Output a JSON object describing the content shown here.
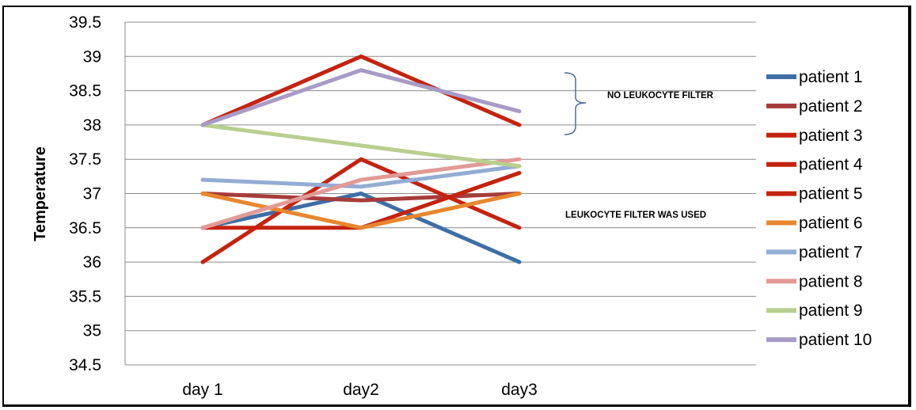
{
  "chart_data": {
    "type": "line",
    "title": "",
    "xlabel": "",
    "ylabel": "Temperature",
    "categories": [
      "day 1",
      "day2",
      "day3"
    ],
    "ylim": [
      34.5,
      39.5
    ],
    "yticks": [
      "34.5",
      "35",
      "35.5",
      "36",
      "36.5",
      "37",
      "37.5",
      "38",
      "38.5",
      "39",
      "39.5"
    ],
    "grid": "horizontal",
    "legend_position": "right",
    "series": [
      {
        "name": "patient 1",
        "color": "#3e6ea6",
        "values": [
          36.5,
          37.0,
          36.0
        ]
      },
      {
        "name": "patient 2",
        "color": "#a63c3a",
        "values": [
          37.0,
          36.9,
          37.0
        ]
      },
      {
        "name": "patient 3",
        "color": "#c4230f",
        "values": [
          36.5,
          36.5,
          37.3
        ]
      },
      {
        "name": "patient 4",
        "color": "#c4230f",
        "values": [
          36.0,
          37.5,
          36.5
        ]
      },
      {
        "name": "patient 5",
        "color": "#c4230f",
        "values": [
          38.0,
          39.0,
          38.0
        ]
      },
      {
        "name": "patient 6",
        "color": "#e8862e",
        "values": [
          37.0,
          36.5,
          37.0
        ]
      },
      {
        "name": "patient 7",
        "color": "#93acd3",
        "values": [
          37.2,
          37.1,
          37.4
        ]
      },
      {
        "name": "patient 8",
        "color": "#e29a97",
        "values": [
          36.5,
          37.2,
          37.5
        ]
      },
      {
        "name": "patient 9",
        "color": "#b8cf8e",
        "values": [
          38.0,
          37.7,
          37.4
        ]
      },
      {
        "name": "patient 10",
        "color": "#a89bc6",
        "values": [
          38.0,
          38.8,
          38.2
        ]
      }
    ],
    "annotations": [
      {
        "text": "NO LEUKOCYTE FILTER",
        "value": 38.45
      },
      {
        "text": "LEUKOCYTE FILTER WAS USED",
        "value": 36.7
      }
    ]
  }
}
